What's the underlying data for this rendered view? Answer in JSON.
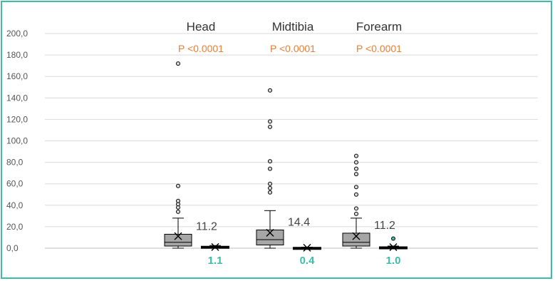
{
  "chart_data": {
    "type": "box",
    "ylim": [
      0,
      200
    ],
    "yticks": [
      "0,0",
      "20,0",
      "40,0",
      "60,0",
      "80,0",
      "100,0",
      "120,0",
      "140,0",
      "160,0",
      "180,0",
      "200,0"
    ],
    "grid": true,
    "groups": [
      {
        "name": "Head",
        "p_value": "P <0.0001",
        "boxes": [
          {
            "min": 0,
            "q1": 2,
            "median": 5.5,
            "q3": 13,
            "max": 28,
            "mean": 11.2,
            "mean_label": "11.2",
            "color": "#a6a6a6",
            "outliers": [
              34,
              38,
              41,
              44,
              58,
              172
            ]
          },
          {
            "min": 0,
            "q1": 0.5,
            "median": 1,
            "q3": 1.5,
            "max": 2.5,
            "mean": 1.1,
            "mean_label": "1.1",
            "color": "#3dbca9",
            "outliers": []
          }
        ]
      },
      {
        "name": "Midtibia",
        "p_value": "P <0.0001",
        "boxes": [
          {
            "min": 0,
            "q1": 3,
            "median": 8,
            "q3": 17,
            "max": 35,
            "mean": 14.4,
            "mean_label": "14.4",
            "color": "#a6a6a6",
            "outliers": [
              52,
              56,
              60,
              74,
              81,
              113,
              118,
              147
            ]
          },
          {
            "min": 0,
            "q1": 0,
            "median": 0,
            "q3": 0.5,
            "max": 1,
            "mean": 0.4,
            "mean_label": "0.4",
            "color": "#3dbca9",
            "outliers": []
          }
        ]
      },
      {
        "name": "Forearm",
        "p_value": "P <0.0001",
        "boxes": [
          {
            "min": 0,
            "q1": 2,
            "median": 5.5,
            "q3": 14,
            "max": 28,
            "mean": 11.2,
            "mean_label": "11.2",
            "color": "#a6a6a6",
            "outliers": [
              32,
              37,
              50,
              57,
              69,
              74,
              80,
              86
            ]
          },
          {
            "min": 0,
            "q1": 0,
            "median": 0.5,
            "q3": 1,
            "max": 2,
            "mean": 1.0,
            "mean_label": "1.0",
            "color": "#3dbca9",
            "outliers": [
              9
            ]
          }
        ]
      }
    ]
  }
}
